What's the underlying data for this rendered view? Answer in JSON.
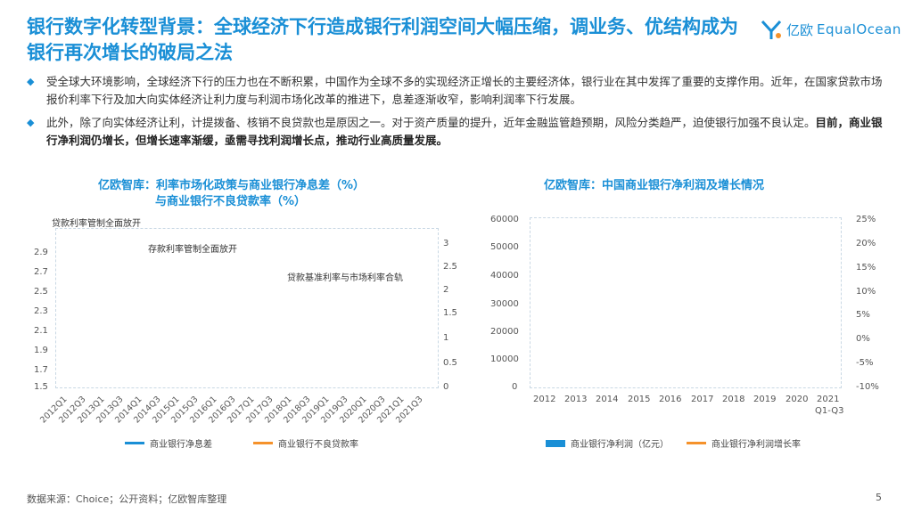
{
  "title": "银行数字化转型背景：全球经济下行造成银行利润空间大幅压缩，调业务、优结构成为银行再次增长的破局之法",
  "logo": {
    "cn": "亿欧",
    "en": "EqualOcean"
  },
  "bullets": [
    {
      "text": "受全球大环境影响，全球经济下行的压力也在不断积累，中国作为全球不多的实现经济正增长的主要经济体，银行业在其中发挥了重要的支撑作用。近年，在国家贷款市场报价利率下行及加大向实体经济让利力度与利润市场化改革的推进下，息差逐渐收窄，影响利润率下行发展。",
      "bold": ""
    },
    {
      "text": "此外，除了向实体经济让利，计提拨备、核销不良贷款也是原因之一。对于资产质量的提升，近年金融监管趋预期，风险分类趋严，迫使银行加强不良认定。",
      "bold": "目前，商业银行净利润仍增长，但增长速率渐缓，亟需寻找利润增长点，推动行业高质量发展。"
    }
  ],
  "left_chart": {
    "title_line1": "亿欧智库：利率市场化政策与商业银行净息差（%）",
    "title_line2": "与商业银行不良贷款率（%）",
    "y_left_ticks": [
      "2.9",
      "2.7",
      "2.5",
      "2.3",
      "2.1",
      "1.9",
      "1.7",
      "1.5"
    ],
    "y_right_ticks": [
      "3",
      "2.5",
      "2",
      "1.5",
      "1",
      "0.5",
      "0"
    ],
    "x_ticks": [
      "2012Q1",
      "2012Q3",
      "2013Q1",
      "2013Q3",
      "2014Q1",
      "2014Q3",
      "2015Q1",
      "2015Q3",
      "2016Q1",
      "2016Q3",
      "2017Q1",
      "2017Q3",
      "2018Q1",
      "2018Q3",
      "2019Q1",
      "2019Q3",
      "2020Q1",
      "2020Q3",
      "2021Q1",
      "2021Q3"
    ],
    "annotations": [
      "贷款利率管制全面放开",
      "存款利率管制全面放开",
      "贷款基准利率与市场利率合轨"
    ],
    "legend": [
      "商业银行净息差",
      "商业银行不良贷款率"
    ],
    "colors": {
      "nim": "#1a8fd6",
      "npl": "#f5922b"
    }
  },
  "right_chart": {
    "title": "亿欧智库：中国商业银行净利润及增长情况",
    "y_left_ticks": [
      "60000",
      "50000",
      "40000",
      "30000",
      "20000",
      "10000",
      "0"
    ],
    "y_right_ticks": [
      "25%",
      "20%",
      "15%",
      "10%",
      "5%",
      "0%",
      "-5%",
      "-10%"
    ],
    "x_ticks": [
      "2012",
      "2013",
      "2014",
      "2015",
      "2016",
      "2017",
      "2018",
      "2019",
      "2020",
      "2021"
    ],
    "x_sub": "Q1-Q3",
    "legend": [
      "商业银行净利润（亿元）",
      "商业银行净利润增长率"
    ],
    "colors": {
      "bar": "#1a8fd6",
      "line": "#f5922b"
    }
  },
  "source": "数据来源：Choice；公开资料；亿欧智库整理",
  "page": "5"
}
